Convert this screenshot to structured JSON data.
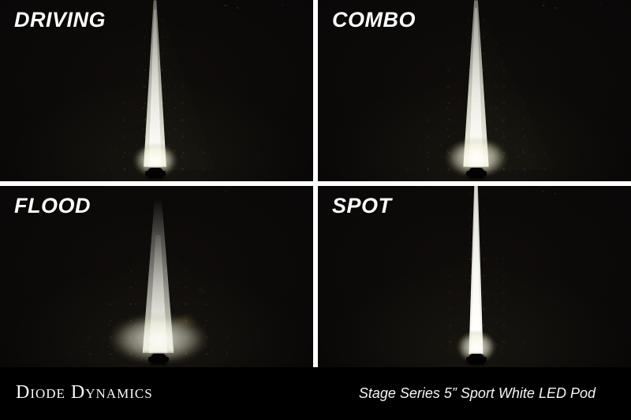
{
  "panels": [
    {
      "id": "driving",
      "label": "DRIVING"
    },
    {
      "id": "combo",
      "label": "COMBO"
    },
    {
      "id": "flood",
      "label": "FLOOD"
    },
    {
      "id": "spot",
      "label": "SPOT"
    }
  ],
  "footer": {
    "brand": "Diode Dynamics",
    "product": "Stage Series 5” Sport White LED Pod"
  },
  "colors": {
    "background": "#000000",
    "divider": "#ffffff",
    "label_text": "#ffffff",
    "footer_text": "#fafafa",
    "beam_warm_white": "#f7f6ea",
    "roadside_tan": "#a98f5c"
  }
}
